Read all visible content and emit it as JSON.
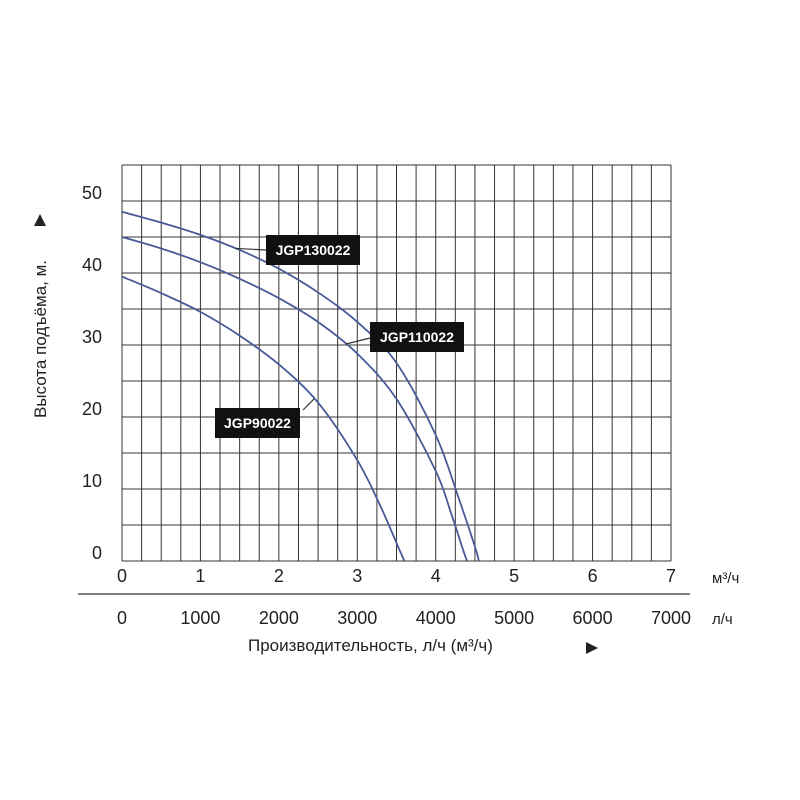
{
  "chart_data": {
    "type": "line",
    "ylabel": "Высота подъёма, м.",
    "xlabel": "Производительность, л/ч (м³/ч)",
    "x_unit_primary": "м³/ч",
    "x_unit_secondary": "л/ч",
    "xlim": [
      0,
      7
    ],
    "ylim": [
      0,
      55
    ],
    "x_ticks_primary": [
      "0",
      "1",
      "2",
      "3",
      "4",
      "5",
      "6",
      "7"
    ],
    "x_ticks_secondary": [
      "0",
      "1000",
      "2000",
      "3000",
      "4000",
      "5000",
      "6000",
      "7000"
    ],
    "y_ticks": [
      "0",
      "10",
      "20",
      "30",
      "40",
      "50"
    ],
    "grid": true,
    "series": [
      {
        "name": "JGP130022",
        "x": [
          0,
          0.5,
          1,
          1.5,
          2,
          2.5,
          3,
          3.5,
          4,
          4.3,
          4.5,
          4.55
        ],
        "y": [
          48.5,
          47,
          45.3,
          43.2,
          40.6,
          37.3,
          33.2,
          27.5,
          17.5,
          8.5,
          2,
          0
        ]
      },
      {
        "name": "JGP110022",
        "x": [
          0,
          0.5,
          1,
          1.5,
          2,
          2.5,
          3,
          3.5,
          4,
          4.2,
          4.35,
          4.4
        ],
        "y": [
          45,
          43.4,
          41.5,
          39.2,
          36.5,
          33.2,
          28.8,
          22.5,
          12.5,
          6.5,
          1.5,
          0
        ]
      },
      {
        "name": "JGP90022",
        "x": [
          0,
          0.5,
          1,
          1.5,
          2,
          2.5,
          3,
          3.3,
          3.5,
          3.6
        ],
        "y": [
          39.5,
          37.2,
          34.6,
          31.3,
          27.3,
          22,
          14,
          7.5,
          2.5,
          0
        ]
      }
    ]
  }
}
